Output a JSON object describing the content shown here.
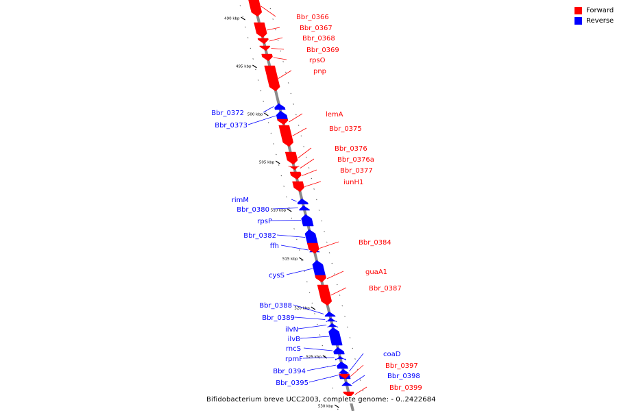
{
  "legend": {
    "forward_label": "Forward",
    "reverse_label": "Reverse",
    "forward_color": "#ff0000",
    "reverse_color": "#0000ff"
  },
  "caption": "Bifidobacterium breve UCC2003, complete genome: - 0..2422684",
  "tick_labels": [
    "490 kbp",
    "495 kbp",
    "500 kbp",
    "505 kbp",
    "510 kbp",
    "515 kbp",
    "520 kbp",
    "525 kbp",
    "530 kbp"
  ],
  "genes": [
    {
      "name": "Bbr_0366",
      "strand": "forward"
    },
    {
      "name": "Bbr_0367",
      "strand": "forward"
    },
    {
      "name": "Bbr_0368",
      "strand": "forward"
    },
    {
      "name": "Bbr_0369",
      "strand": "forward"
    },
    {
      "name": "rpsO",
      "strand": "forward"
    },
    {
      "name": "pnp",
      "strand": "forward"
    },
    {
      "name": "Bbr_0372",
      "strand": "reverse"
    },
    {
      "name": "Bbr_0373",
      "strand": "reverse"
    },
    {
      "name": "lemA",
      "strand": "forward"
    },
    {
      "name": "Bbr_0375",
      "strand": "forward"
    },
    {
      "name": "Bbr_0376",
      "strand": "forward"
    },
    {
      "name": "Bbr_0376a",
      "strand": "forward"
    },
    {
      "name": "Bbr_0377",
      "strand": "forward"
    },
    {
      "name": "iunH1",
      "strand": "forward"
    },
    {
      "name": "rimM",
      "strand": "reverse"
    },
    {
      "name": "Bbr_0380",
      "strand": "reverse"
    },
    {
      "name": "rpsP",
      "strand": "reverse"
    },
    {
      "name": "Bbr_0382",
      "strand": "reverse"
    },
    {
      "name": "ffh",
      "strand": "reverse"
    },
    {
      "name": "Bbr_0384",
      "strand": "forward"
    },
    {
      "name": "cysS",
      "strand": "reverse"
    },
    {
      "name": "guaA1",
      "strand": "forward"
    },
    {
      "name": "Bbr_0387",
      "strand": "forward"
    },
    {
      "name": "Bbr_0388",
      "strand": "reverse"
    },
    {
      "name": "Bbr_0389",
      "strand": "reverse"
    },
    {
      "name": "ilvN",
      "strand": "reverse"
    },
    {
      "name": "ilvB",
      "strand": "reverse"
    },
    {
      "name": "rncS",
      "strand": "reverse"
    },
    {
      "name": "rpmF",
      "strand": "reverse"
    },
    {
      "name": "Bbr_0394",
      "strand": "reverse"
    },
    {
      "name": "Bbr_0395",
      "strand": "reverse"
    },
    {
      "name": "coaD",
      "strand": "reverse"
    },
    {
      "name": "Bbr_0397",
      "strand": "forward"
    },
    {
      "name": "Bbr_0398",
      "strand": "reverse"
    },
    {
      "name": "Bbr_0399",
      "strand": "forward"
    }
  ]
}
